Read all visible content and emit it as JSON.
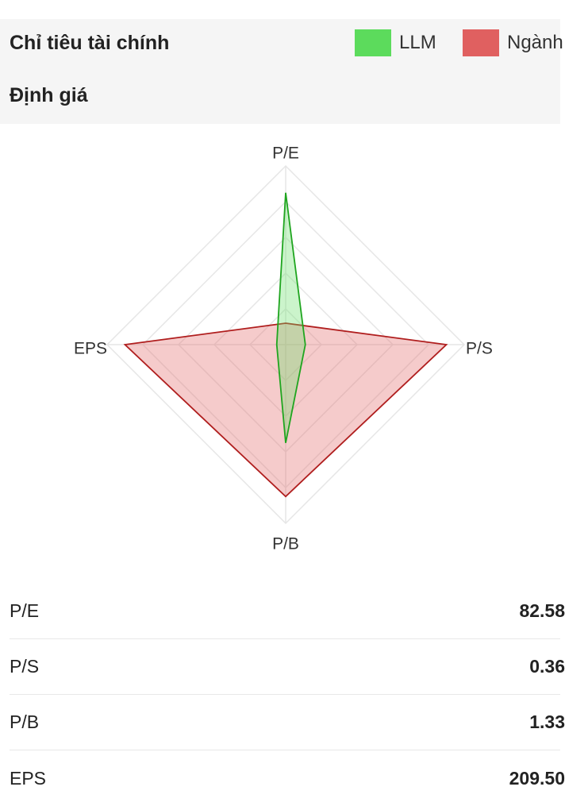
{
  "header": {
    "section_title": "Chỉ tiêu tài chính",
    "subsection_title": "Định giá"
  },
  "legend": [
    {
      "label": "LLM",
      "color": "#5cdb5c"
    },
    {
      "label": "Ngành",
      "color": "#e06060"
    }
  ],
  "chart_data": {
    "type": "radar",
    "axes": [
      "P/E",
      "P/S",
      "P/B",
      "EPS"
    ],
    "series": [
      {
        "name": "LLM",
        "values": [
          0.85,
          0.11,
          0.55,
          0.05
        ],
        "stroke": "#1fa51f",
        "fill": "#6be06b"
      },
      {
        "name": "Ngành",
        "values": [
          0.12,
          0.9,
          0.85,
          0.9
        ],
        "stroke": "#b01e1e",
        "fill": "#e26b6b"
      }
    ],
    "range": [
      0,
      1
    ],
    "grid_levels": 5,
    "grid": true,
    "legend_position": "top-right"
  },
  "metrics": [
    {
      "name": "P/E",
      "value": "82.58"
    },
    {
      "name": "P/S",
      "value": "0.36"
    },
    {
      "name": "P/B",
      "value": "1.33"
    },
    {
      "name": "EPS",
      "value": "209.50"
    }
  ]
}
